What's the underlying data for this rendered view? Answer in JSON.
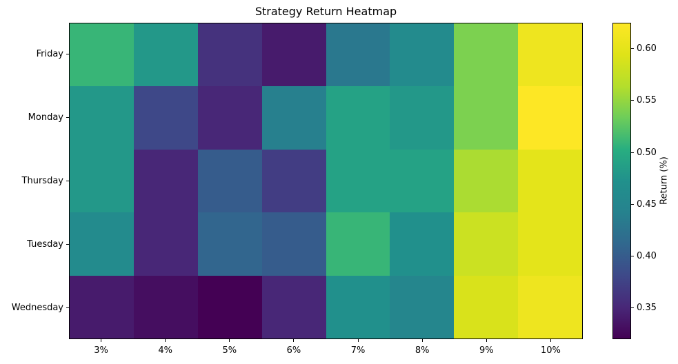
{
  "title": "Strategy Return Heatmap",
  "chart_data": {
    "type": "heatmap",
    "title": "Strategy Return Heatmap",
    "rows": [
      "Friday",
      "Monday",
      "Thursday",
      "Tuesday",
      "Wednesday"
    ],
    "columns": [
      "3%",
      "4%",
      "5%",
      "6%",
      "7%",
      "8%",
      "9%",
      "10%"
    ],
    "values": [
      [
        0.51,
        0.48,
        0.36,
        0.34,
        0.43,
        0.46,
        0.54,
        0.61
      ],
      [
        0.48,
        0.38,
        0.35,
        0.44,
        0.49,
        0.48,
        0.54,
        0.625
      ],
      [
        0.48,
        0.35,
        0.4,
        0.37,
        0.49,
        0.49,
        0.56,
        0.6
      ],
      [
        0.46,
        0.35,
        0.41,
        0.4,
        0.51,
        0.47,
        0.58,
        0.6
      ],
      [
        0.34,
        0.33,
        0.32,
        0.35,
        0.47,
        0.45,
        0.59,
        0.61
      ]
    ],
    "colorbar": {
      "label": "Return (%)",
      "tick_labels": [
        "0.60",
        "0.55",
        "0.50",
        "0.45",
        "0.40",
        "0.35"
      ],
      "tick_values": [
        0.6,
        0.55,
        0.5,
        0.45,
        0.4,
        0.35
      ],
      "vmin": 0.32,
      "vmax": 0.625
    },
    "colormap": {
      "name": "viridis",
      "stops": [
        "#440154",
        "#482878",
        "#3e4989",
        "#31688e",
        "#26828e",
        "#21918c",
        "#28ae80",
        "#6dcd5a",
        "#b4de2c",
        "#dfe318",
        "#fde725"
      ]
    },
    "layout": {
      "grid": "off",
      "legend": "colorbar-right",
      "cell_borders": "none"
    }
  }
}
